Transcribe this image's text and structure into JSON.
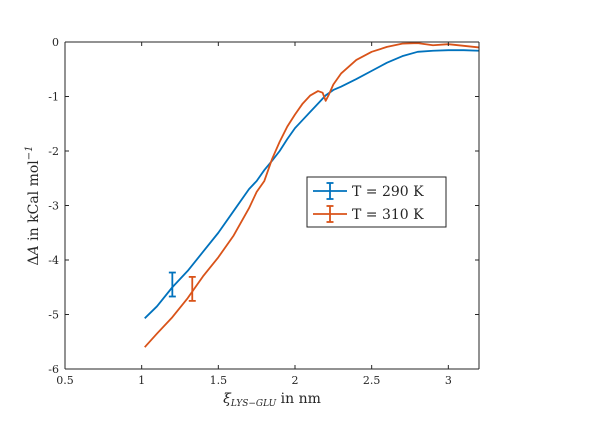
{
  "chart_data": {
    "type": "line",
    "title": "",
    "xlabel": "ξ_{LYS−GLU} in nm",
    "xlabel_parts": {
      "base": "ξ",
      "subscript": "LYS−GLU",
      "suffix": " in nm"
    },
    "ylabel": "ΔA in kCal mol^{-1}",
    "ylabel_parts": {
      "delta": "Δ",
      "var": "A",
      "mid": " in kCal mol",
      "sup": "−1"
    },
    "xlim": [
      0.5,
      3.2
    ],
    "ylim": [
      -6,
      0
    ],
    "xticks": [
      0.5,
      1,
      1.5,
      2,
      2.5,
      3
    ],
    "xtick_labels": [
      "0.5",
      "1",
      "1.5",
      "2",
      "2.5",
      "3"
    ],
    "yticks": [
      0,
      -1,
      -2,
      -3,
      -4,
      -5,
      -6
    ],
    "ytick_labels": [
      "0",
      "-1",
      "-2",
      "-3",
      "-4",
      "-5",
      "-6"
    ],
    "grid": false,
    "legend_position": "right-center",
    "series": [
      {
        "name": "T = 290 K",
        "color": "#0072BD",
        "x": [
          1.02,
          1.1,
          1.2,
          1.3,
          1.4,
          1.5,
          1.6,
          1.7,
          1.75,
          1.8,
          1.85,
          1.9,
          1.95,
          2.0,
          2.05,
          2.1,
          2.15,
          2.2,
          2.25,
          2.3,
          2.4,
          2.5,
          2.6,
          2.7,
          2.8,
          2.9,
          3.0,
          3.1,
          3.2
        ],
        "y": [
          -5.07,
          -4.85,
          -4.5,
          -4.2,
          -3.85,
          -3.5,
          -3.1,
          -2.7,
          -2.55,
          -2.35,
          -2.18,
          -2.0,
          -1.78,
          -1.58,
          -1.43,
          -1.28,
          -1.13,
          -0.98,
          -0.88,
          -0.82,
          -0.68,
          -0.53,
          -0.38,
          -0.26,
          -0.18,
          -0.16,
          -0.15,
          -0.15,
          -0.16
        ],
        "errorbar": {
          "x": 1.2,
          "y": -4.45,
          "err": 0.22
        }
      },
      {
        "name": "T = 310 K",
        "color": "#D95319",
        "x": [
          1.02,
          1.1,
          1.2,
          1.3,
          1.4,
          1.5,
          1.6,
          1.7,
          1.75,
          1.8,
          1.85,
          1.9,
          1.95,
          2.0,
          2.05,
          2.1,
          2.15,
          2.18,
          2.2,
          2.22,
          2.25,
          2.3,
          2.4,
          2.5,
          2.6,
          2.7,
          2.8,
          2.9,
          3.0,
          3.1,
          3.2
        ],
        "y": [
          -5.6,
          -5.35,
          -5.05,
          -4.7,
          -4.3,
          -3.95,
          -3.55,
          -3.05,
          -2.75,
          -2.55,
          -2.15,
          -1.83,
          -1.55,
          -1.33,
          -1.13,
          -0.98,
          -0.9,
          -0.93,
          -1.08,
          -0.97,
          -0.78,
          -0.58,
          -0.33,
          -0.18,
          -0.09,
          -0.03,
          -0.02,
          -0.06,
          -0.04,
          -0.07,
          -0.1
        ],
        "errorbar": {
          "x": 1.33,
          "y": -4.53,
          "err": 0.22
        }
      }
    ]
  }
}
